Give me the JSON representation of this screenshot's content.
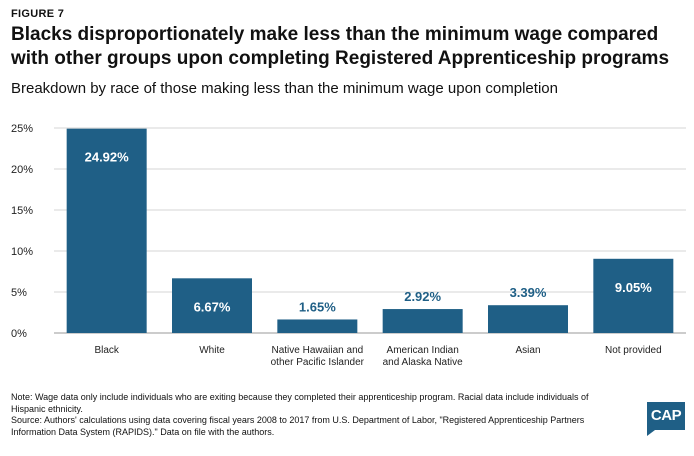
{
  "figure_label": "FIGURE 7",
  "title": "Blacks disproportionately make less than the minimum wage compared with other groups upon completing Registered Apprenticeship programs",
  "subtitle": "Breakdown by race of those making less than the minimum wage upon completion",
  "notes": {
    "note": "Note: Wage data only include individuals who are exiting because they completed their apprenticeship program. Racial data include individuals of Hispanic ethnicity.",
    "source": "Source: Authors' calculations using data covering fiscal years 2008 to 2017 from U.S. Department of Labor, \"Registered Apprenticeship Partners Information Data System (RAPIDS).\" Data on file with the authors."
  },
  "logo_text": "CAP",
  "colors": {
    "bar": "#1f5f86",
    "grid": "#d6d6d6",
    "label_inside": "#ffffff",
    "label_outside": "#1f5f86"
  },
  "chart_data": {
    "type": "bar",
    "categories": [
      "Black",
      "White",
      "Native Hawaiian and other Pacific Islander",
      "American Indian and Alaska Native",
      "Asian",
      "Not provided"
    ],
    "category_lines": [
      [
        "Black"
      ],
      [
        "White"
      ],
      [
        "Native Hawaiian and",
        "other Pacific Islander"
      ],
      [
        "American Indian",
        "and Alaska Native"
      ],
      [
        "Asian"
      ],
      [
        "Not provided"
      ]
    ],
    "values": [
      24.92,
      6.67,
      1.65,
      2.92,
      3.39,
      9.05
    ],
    "data_labels": [
      "24.92%",
      "6.67%",
      "1.65%",
      "2.92%",
      "3.39%",
      "9.05%"
    ],
    "yticks": [
      0,
      5,
      10,
      15,
      20,
      25
    ],
    "ytick_labels": [
      "0%",
      "5%",
      "10%",
      "15%",
      "20%",
      "25%"
    ],
    "ylim": [
      0,
      25
    ],
    "grid": true,
    "legend": "none"
  }
}
